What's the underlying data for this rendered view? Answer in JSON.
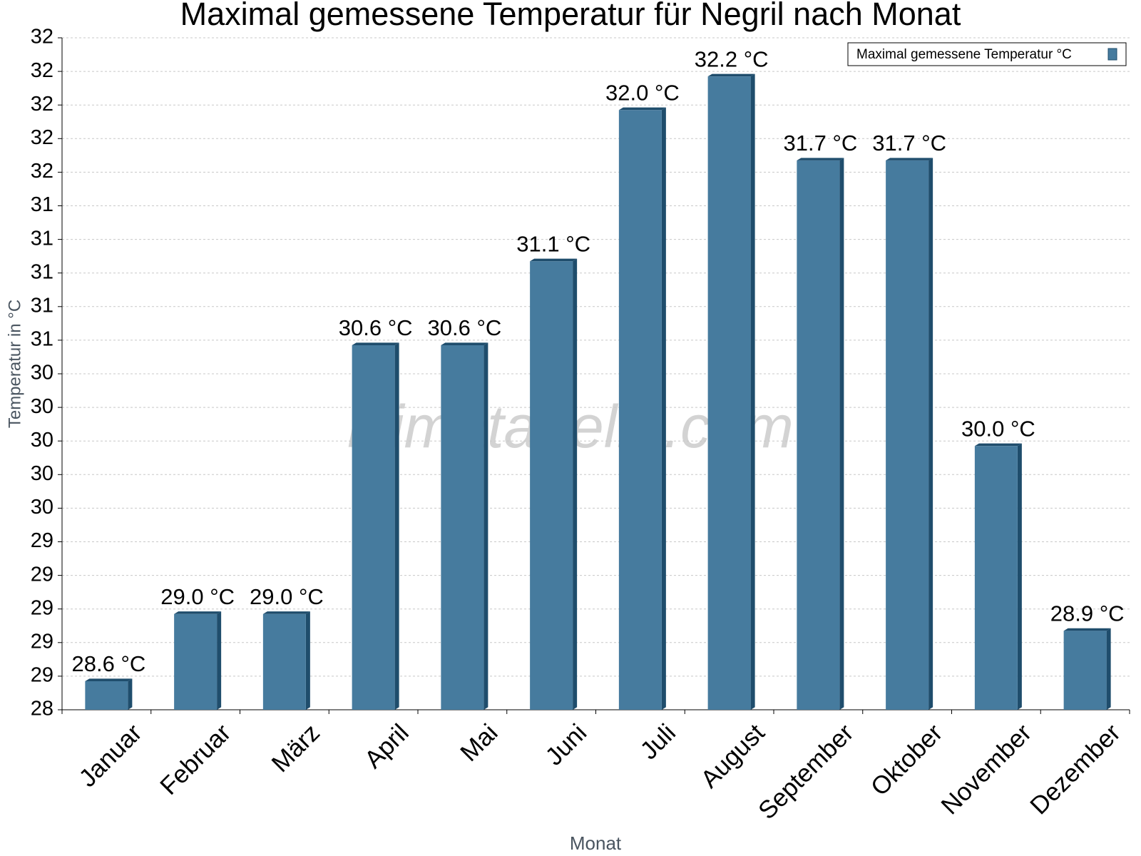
{
  "chart_data": {
    "type": "bar",
    "title": "Maximal gemessene Temperatur für Negril nach Monat",
    "x_label": "Monat",
    "y_label": "Temperatur in °C",
    "watermark": "klimatabelle.com",
    "categories": [
      "Januar",
      "Februar",
      "März",
      "April",
      "Mai",
      "Juni",
      "Juli",
      "August",
      "September",
      "Oktober",
      "November",
      "Dezember"
    ],
    "series": [
      {
        "name": "Maximal gemessene Temperatur °C",
        "color": "#467b9e",
        "values": [
          28.6,
          29.0,
          29.0,
          30.6,
          30.6,
          31.1,
          32.0,
          32.2,
          31.7,
          31.7,
          30.0,
          28.9
        ],
        "value_labels": [
          "28.6 °C",
          "29.0 °C",
          "29.0 °C",
          "30.6 °C",
          "30.6 °C",
          "31.1 °C",
          "32.0 °C",
          "32.2 °C",
          "31.7 °C",
          "31.7 °C",
          "30.0 °C",
          "28.9 °C"
        ]
      }
    ],
    "ylim": [
      28.43,
      32.43
    ],
    "yticks": [
      {
        "value": 28.43,
        "label": "28"
      },
      {
        "value": 28.63,
        "label": "29"
      },
      {
        "value": 28.83,
        "label": "29"
      },
      {
        "value": 29.03,
        "label": "29"
      },
      {
        "value": 29.23,
        "label": "29"
      },
      {
        "value": 29.43,
        "label": "29"
      },
      {
        "value": 29.63,
        "label": "30"
      },
      {
        "value": 29.83,
        "label": "30"
      },
      {
        "value": 30.03,
        "label": "30"
      },
      {
        "value": 30.23,
        "label": "30"
      },
      {
        "value": 30.43,
        "label": "30"
      },
      {
        "value": 30.63,
        "label": "31"
      },
      {
        "value": 30.83,
        "label": "31"
      },
      {
        "value": 31.03,
        "label": "31"
      },
      {
        "value": 31.23,
        "label": "31"
      },
      {
        "value": 31.43,
        "label": "31"
      },
      {
        "value": 31.63,
        "label": "32"
      },
      {
        "value": 31.83,
        "label": "32"
      },
      {
        "value": 32.03,
        "label": "32"
      },
      {
        "value": 32.23,
        "label": "32"
      },
      {
        "value": 32.43,
        "label": "32"
      }
    ],
    "grid": true,
    "legend": "top-right"
  }
}
